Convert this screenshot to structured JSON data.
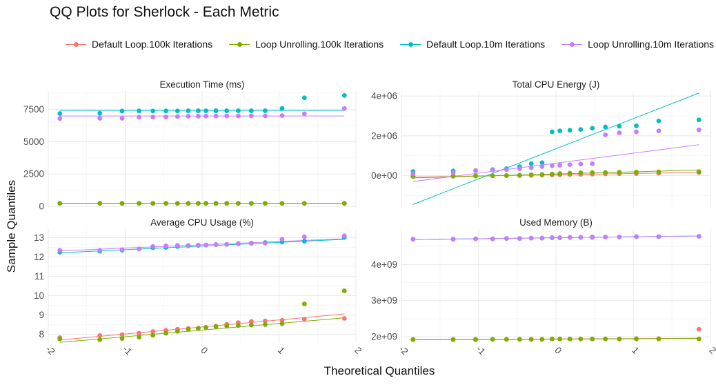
{
  "title": "QQ Plots for Sherlock - Each Metric",
  "xlabel": "Theoretical Quantiles",
  "ylabel": "Sample Quantiles",
  "legend": [
    {
      "name": "Default Loop.100k Iterations",
      "color": "#F8766D"
    },
    {
      "name": "Loop Unrolling.100k Iterations",
      "color": "#7CAE00"
    },
    {
      "name": "Default Loop.10m Iterations",
      "color": "#00BFC4"
    },
    {
      "name": "Loop Unrolling.10m Iterations",
      "color": "#C77CFF"
    }
  ],
  "chart_data": [
    {
      "type": "scatter",
      "title": "Execution Time (ms)",
      "xlim": [
        -2,
        2
      ],
      "xticks": [
        -2,
        -1,
        0,
        1,
        2
      ],
      "ylim": [
        -150,
        8900
      ],
      "yticks": [
        0,
        2500,
        5000,
        7500
      ],
      "yticklabels": [
        "0",
        "2500",
        "5000",
        "7500"
      ],
      "x": [
        -1.85,
        -1.33,
        -1.04,
        -0.82,
        -0.64,
        -0.47,
        -0.32,
        -0.18,
        -0.05,
        0.05,
        0.18,
        0.32,
        0.47,
        0.64,
        0.82,
        1.04,
        1.33,
        1.85
      ],
      "series": [
        {
          "name": "Default Loop.100k Iterations",
          "values": [
            240,
            240,
            240,
            240,
            240,
            240,
            240,
            240,
            240,
            240,
            240,
            240,
            240,
            240,
            240,
            240,
            240,
            240
          ],
          "line": [
            240,
            240
          ]
        },
        {
          "name": "Loop Unrolling.100k Iterations",
          "values": [
            235,
            235,
            235,
            235,
            235,
            235,
            235,
            235,
            235,
            235,
            235,
            235,
            235,
            235,
            235,
            235,
            235,
            235
          ],
          "line": [
            235,
            235
          ]
        },
        {
          "name": "Default Loop.10m Iterations",
          "values": [
            7170,
            7190,
            7360,
            7370,
            7370,
            7370,
            7370,
            7380,
            7380,
            7380,
            7380,
            7380,
            7380,
            7380,
            7380,
            7560,
            8380,
            8560
          ],
          "line": [
            7400,
            7400
          ]
        },
        {
          "name": "Loop Unrolling.10m Iterations",
          "values": [
            6780,
            6800,
            6800,
            6880,
            6900,
            6900,
            6930,
            6960,
            6960,
            6970,
            6970,
            6980,
            6980,
            6990,
            6990,
            7010,
            7150,
            7560
          ],
          "line": [
            6980,
            6980
          ]
        }
      ]
    },
    {
      "type": "scatter",
      "title": "Total CPU Energy (J)",
      "xlim": [
        -2,
        2
      ],
      "xticks": [
        -2,
        -1,
        0,
        1,
        2
      ],
      "ylim": [
        -1650000,
        4250000
      ],
      "yticks": [
        0,
        2000000,
        4000000
      ],
      "yticklabels": [
        "0e+00",
        "2e+06",
        "4e+06"
      ],
      "x": [
        -1.85,
        -1.33,
        -1.04,
        -0.82,
        -0.64,
        -0.47,
        -0.32,
        -0.18,
        -0.05,
        0.05,
        0.18,
        0.32,
        0.47,
        0.64,
        0.82,
        1.04,
        1.33,
        1.85
      ],
      "series": [
        {
          "name": "Default Loop.100k Iterations",
          "values": [
            -50000,
            -30000,
            -20000,
            -10000,
            -5000,
            0,
            10000,
            20000,
            30000,
            40000,
            50000,
            60000,
            70000,
            80000,
            90000,
            100000,
            120000,
            150000
          ],
          "line": [
            -80000,
            160000
          ]
        },
        {
          "name": "Loop Unrolling.100k Iterations",
          "values": [
            -40000,
            -30000,
            -20000,
            -10000,
            0,
            20000,
            40000,
            60000,
            80000,
            100000,
            120000,
            140000,
            150000,
            160000,
            170000,
            180000,
            190000,
            200000
          ],
          "line": [
            -120000,
            280000
          ]
        },
        {
          "name": "Default Loop.10m Iterations",
          "values": [
            200000,
            230000,
            250000,
            300000,
            350000,
            450000,
            600000,
            650000,
            2200000,
            2250000,
            2280000,
            2320000,
            2380000,
            2450000,
            2480000,
            2500000,
            2750000,
            2800000
          ],
          "line": [
            -1450000,
            4150000
          ]
        },
        {
          "name": "Loop Unrolling.10m Iterations",
          "values": [
            100000,
            150000,
            250000,
            280000,
            300000,
            350000,
            400000,
            450000,
            500000,
            520000,
            550000,
            580000,
            600000,
            2050000,
            2150000,
            2200000,
            2250000,
            2300000
          ],
          "line": [
            -300000,
            1550000
          ]
        }
      ]
    },
    {
      "type": "scatter",
      "title": "Average CPU Usage (%)",
      "xlim": [
        -2,
        2
      ],
      "xticks": [
        -2,
        -1,
        0,
        1,
        2
      ],
      "yticks": [
        8,
        9,
        10,
        11,
        12,
        13
      ],
      "yticklabels": [
        "8",
        "9",
        "10",
        "11",
        "12",
        "13"
      ],
      "ylim": [
        7.55,
        13.45
      ],
      "x": [
        -1.85,
        -1.33,
        -1.04,
        -0.82,
        -0.64,
        -0.47,
        -0.32,
        -0.18,
        -0.05,
        0.05,
        0.18,
        0.32,
        0.47,
        0.64,
        0.82,
        1.04,
        1.33,
        1.85
      ],
      "series": [
        {
          "name": "Default Loop.100k Iterations",
          "values": [
            7.82,
            7.93,
            7.98,
            8.05,
            8.14,
            8.2,
            8.26,
            8.3,
            8.32,
            8.36,
            8.42,
            8.52,
            8.6,
            8.66,
            8.69,
            8.72,
            8.78,
            8.82
          ],
          "line": [
            7.7,
            9.05
          ]
        },
        {
          "name": "Loop Unrolling.100k Iterations",
          "values": [
            7.75,
            7.72,
            7.78,
            7.85,
            7.95,
            8.05,
            8.15,
            8.25,
            8.3,
            8.35,
            8.4,
            8.42,
            8.45,
            8.48,
            8.5,
            8.55,
            9.57,
            10.25
          ],
          "line": [
            7.58,
            8.85
          ]
        },
        {
          "name": "Default Loop.10m Iterations",
          "values": [
            12.25,
            12.3,
            12.35,
            12.42,
            12.48,
            12.5,
            12.55,
            12.58,
            12.6,
            12.62,
            12.64,
            12.65,
            12.7,
            12.72,
            12.75,
            12.78,
            12.82,
            13.02
          ],
          "line": [
            12.22,
            12.92
          ]
        },
        {
          "name": "Loop Unrolling.10m Iterations",
          "values": [
            12.35,
            12.35,
            12.38,
            12.42,
            12.55,
            12.58,
            12.6,
            12.6,
            12.62,
            12.62,
            12.65,
            12.66,
            12.68,
            12.7,
            12.72,
            12.92,
            13.05,
            13.1
          ],
          "line": [
            12.32,
            12.95
          ]
        }
      ]
    },
    {
      "type": "scatter",
      "title": "Used Memory (B)",
      "xlim": [
        -2,
        2
      ],
      "xticks": [
        -2,
        -1,
        0,
        1,
        2
      ],
      "xticklabels": [
        "-2",
        "-1",
        "0",
        "1",
        "2"
      ],
      "ylim": [
        1830000000,
        4980000000
      ],
      "yticks": [
        2000000000,
        3000000000,
        4000000000
      ],
      "yticklabels": [
        "2e+09",
        "3e+09",
        "4e+09"
      ],
      "x": [
        -1.85,
        -1.33,
        -1.04,
        -0.82,
        -0.64,
        -0.47,
        -0.32,
        -0.18,
        -0.05,
        0.05,
        0.18,
        0.32,
        0.47,
        0.64,
        0.82,
        1.04,
        1.33,
        1.85
      ],
      "series": [
        {
          "name": "Default Loop.100k Iterations",
          "values": [
            1930000000,
            1930000000,
            1930000000,
            1930000000,
            1930000000,
            1930000000,
            1930000000,
            1930000000,
            1940000000,
            1940000000,
            1940000000,
            1940000000,
            1940000000,
            1940000000,
            1940000000,
            1950000000,
            1950000000,
            2210000000
          ],
          "line": [
            1920000000,
            1960000000
          ]
        },
        {
          "name": "Loop Unrolling.100k Iterations",
          "values": [
            1920000000,
            1920000000,
            1920000000,
            1930000000,
            1930000000,
            1930000000,
            1930000000,
            1930000000,
            1940000000,
            1940000000,
            1940000000,
            1940000000,
            1940000000,
            1940000000,
            1940000000,
            1940000000,
            1940000000,
            1940000000
          ],
          "line": [
            1915000000,
            1955000000
          ]
        },
        {
          "name": "Default Loop.10m Iterations",
          "values": [
            4700000000,
            4700000000,
            4710000000,
            4710000000,
            4720000000,
            4720000000,
            4730000000,
            4730000000,
            4740000000,
            4740000000,
            4750000000,
            4750000000,
            4760000000,
            4760000000,
            4760000000,
            4770000000,
            4770000000,
            4780000000
          ],
          "line": [
            4690000000,
            4790000000
          ]
        },
        {
          "name": "Loop Unrolling.10m Iterations",
          "values": [
            4700000000,
            4700000000,
            4710000000,
            4710000000,
            4720000000,
            4720000000,
            4730000000,
            4730000000,
            4740000000,
            4740000000,
            4750000000,
            4750000000,
            4750000000,
            4760000000,
            4760000000,
            4770000000,
            4770000000,
            4780000000
          ],
          "line": [
            4690000000,
            4790000000
          ]
        }
      ]
    }
  ]
}
